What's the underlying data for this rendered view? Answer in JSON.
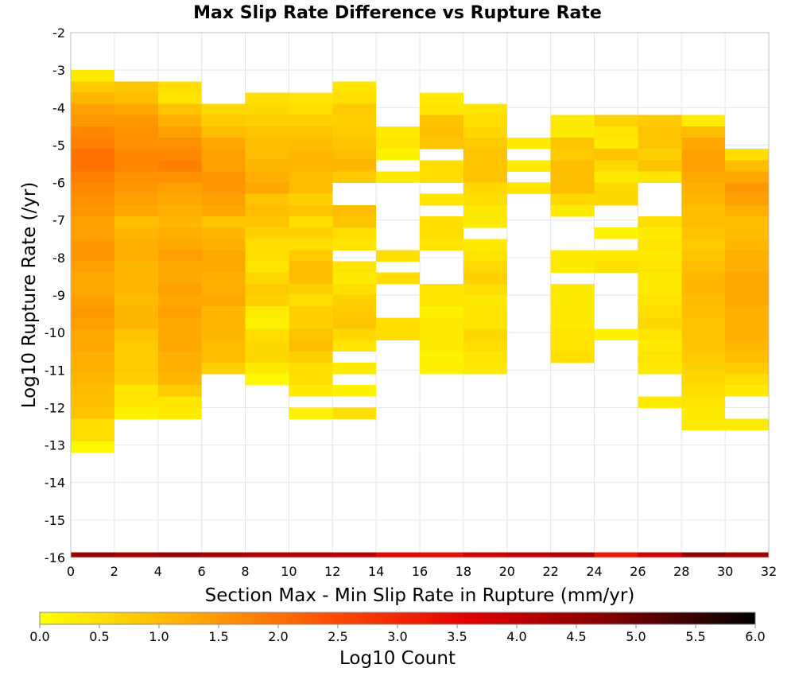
{
  "chart_data": {
    "type": "heatmap",
    "title": "Max Slip Rate Difference vs Rupture Rate",
    "xlabel": "Section Max - Min Slip Rate in Rupture (mm/yr)",
    "ylabel": "Log10 Rupture Rate (/yr)",
    "xlim": [
      0,
      32
    ],
    "ylim": [
      -16,
      -2
    ],
    "x_ticks": [
      "0",
      "2",
      "4",
      "6",
      "8",
      "10",
      "12",
      "14",
      "16",
      "18",
      "20",
      "22",
      "24",
      "26",
      "28",
      "30",
      "32"
    ],
    "y_ticks": [
      "-2",
      "-3",
      "-4",
      "-5",
      "-6",
      "-7",
      "-8",
      "-9",
      "-10",
      "-11",
      "-12",
      "-13",
      "-14",
      "-15",
      "-16"
    ],
    "x_bin_width": 2,
    "y_bin_height": 0.3,
    "colorbar": {
      "label": "Log10 Count",
      "range": [
        0,
        6
      ],
      "ticks": [
        "0.0",
        "0.5",
        "1.0",
        "1.5",
        "2.0",
        "2.5",
        "3.0",
        "3.5",
        "4.0",
        "4.5",
        "5.0",
        "5.5",
        "6.0"
      ],
      "colors": [
        "#ffff00",
        "#ffb000",
        "#ff5000",
        "#e00000",
        "#800000",
        "#000000"
      ]
    },
    "columns": [
      {
        "x0": 0,
        "ymax": -3.0,
        "values": [
          0.3,
          0.8,
          1.1,
          1.4,
          1.5,
          1.7,
          1.8,
          2.0,
          2.0,
          1.8,
          1.7,
          1.6,
          1.5,
          1.4,
          1.4,
          1.5,
          1.5,
          1.4,
          1.3,
          1.3,
          1.4,
          1.5,
          1.4,
          1.3,
          1.3,
          1.2,
          1.2,
          1.1,
          1.0,
          1.0,
          0.9,
          0.5,
          0.5,
          0.1
        ]
      },
      {
        "x0": 2,
        "ymax": -3.3,
        "values": [
          0.9,
          1.0,
          1.3,
          1.5,
          1.6,
          1.6,
          1.7,
          1.7,
          1.6,
          1.5,
          1.4,
          1.3,
          1.0,
          1.1,
          1.2,
          1.2,
          1.1,
          1.1,
          1.1,
          1.0,
          1.1,
          1.1,
          0.9,
          0.8,
          0.8,
          0.8,
          0.7,
          0.4,
          0.4,
          0.2
        ]
      },
      {
        "x0": 4,
        "ymax": -3.3,
        "values": [
          0.5,
          0.4,
          0.9,
          1.2,
          1.4,
          1.6,
          1.7,
          1.8,
          1.6,
          1.4,
          1.3,
          1.2,
          1.1,
          1.2,
          1.3,
          1.4,
          1.3,
          1.3,
          1.4,
          1.3,
          1.4,
          1.3,
          1.3,
          1.3,
          1.2,
          1.2,
          1.1,
          0.8,
          0.4,
          0.3
        ]
      },
      {
        "x0": 6,
        "ymax": -3.9,
        "values": [
          0.6,
          0.8,
          1.0,
          1.3,
          1.4,
          1.4,
          1.5,
          1.5,
          1.4,
          1.3,
          0.9,
          1.1,
          1.2,
          1.3,
          1.3,
          1.2,
          1.2,
          1.3,
          1.1,
          1.1,
          1.1,
          1.0,
          1.0,
          0.7
        ]
      },
      {
        "x0": 8,
        "ymax": -3.6,
        "values": [
          0.5,
          0.6,
          0.7,
          0.9,
          1.0,
          1.0,
          1.1,
          1.2,
          1.3,
          0.9,
          1.0,
          0.9,
          0.7,
          0.5,
          0.5,
          0.4,
          0.6,
          0.8,
          0.7,
          0.3,
          0.2,
          0.5,
          0.6,
          0.6,
          0.3,
          0.1
        ]
      },
      {
        "x0": 10,
        "ymax": -3.6,
        "values": [
          0.4,
          0.5,
          0.7,
          0.9,
          1.0,
          1.1,
          1.1,
          1.0,
          1.0,
          0.7,
          0.9,
          0.5,
          0.7,
          0.5,
          0.8,
          1.0,
          1.0,
          0.7,
          0.5,
          0.7,
          0.7,
          0.9,
          1.0,
          0.7,
          0.5,
          0.5,
          0.3,
          null,
          0.2
        ]
      },
      {
        "x0": 12,
        "ymax": -3.3,
        "values": [
          0.4,
          0.5,
          0.8,
          0.7,
          0.8,
          0.9,
          1.0,
          1.1,
          0.8,
          null,
          null,
          1.0,
          0.9,
          0.5,
          0.4,
          null,
          0.4,
          0.3,
          0.5,
          0.7,
          0.8,
          0.9,
          0.6,
          0.4,
          null,
          0.3,
          null,
          0.2,
          null,
          0.5
        ]
      },
      {
        "x0": 14,
        "ymax": -4.5,
        "values": [
          0.3,
          0.4,
          0.2,
          null,
          0.3,
          null,
          null,
          null,
          null,
          null,
          null,
          0.5,
          null,
          0.5,
          null,
          null,
          null,
          0.5,
          0.5
        ]
      },
      {
        "x0": 16,
        "ymax": -3.6,
        "values": [
          0.3,
          0.4,
          0.9,
          1.0,
          0.9,
          null,
          0.5,
          0.5,
          null,
          0.4,
          null,
          0.5,
          0.5,
          0.4,
          null,
          null,
          null,
          0.4,
          0.4,
          0.2,
          0.3,
          0.3,
          0.3,
          0.2,
          0.2
        ]
      },
      {
        "x0": 18,
        "ymax": -3.9,
        "values": [
          0.4,
          0.5,
          0.6,
          0.8,
          0.9,
          0.9,
          0.9,
          0.6,
          0.5,
          0.3,
          0.3,
          null,
          0.3,
          0.4,
          0.6,
          0.7,
          0.5,
          0.3,
          0.4,
          0.4,
          0.6,
          0.5,
          0.4,
          0.3
        ]
      },
      {
        "x0": 20,
        "ymax": -4.8,
        "values": [
          0.3,
          null,
          0.3,
          null,
          0.4
        ]
      },
      {
        "x0": 22,
        "ymax": -4.2,
        "values": [
          0.3,
          0.3,
          0.9,
          0.8,
          1.0,
          1.0,
          1.0,
          0.6,
          0.3,
          null,
          null,
          null,
          0.3,
          0.3,
          null,
          0.3,
          0.3,
          0.3,
          0.3,
          0.4,
          0.4,
          0.5
        ]
      },
      {
        "x0": 24,
        "ymax": -4.2,
        "values": [
          0.7,
          0.4,
          0.3,
          0.9,
          0.6,
          0.3,
          0.6,
          0.6,
          null,
          null,
          0.2,
          null,
          0.3,
          0.5,
          null,
          null,
          null,
          null,
          null,
          0.2
        ]
      },
      {
        "x0": 26,
        "ymax": -4.2,
        "values": [
          0.8,
          0.9,
          0.9,
          0.7,
          0.9,
          0.4,
          null,
          null,
          null,
          0.5,
          0.3,
          0.4,
          0.3,
          0.4,
          0.3,
          0.3,
          0.4,
          0.5,
          0.6,
          0.4,
          0.3,
          0.4,
          0.3,
          null,
          null,
          0.3
        ]
      },
      {
        "x0": 28,
        "ymax": -4.2,
        "values": [
          0.3,
          1.0,
          1.3,
          1.4,
          1.4,
          1.3,
          1.2,
          1.1,
          1.0,
          1.0,
          0.9,
          0.8,
          0.9,
          1.0,
          1.1,
          1.1,
          1.0,
          1.0,
          0.9,
          0.9,
          0.9,
          0.8,
          0.7,
          0.6,
          0.5,
          0.4,
          0.3,
          0.3
        ]
      },
      {
        "x0": 30,
        "ymax": -5.1,
        "values": [
          0.5,
          1.0,
          1.3,
          1.5,
          1.4,
          1.2,
          1.0,
          1.0,
          1.1,
          1.2,
          1.2,
          1.3,
          1.3,
          1.3,
          1.2,
          1.2,
          1.2,
          1.1,
          1.0,
          0.8,
          0.5,
          0.3,
          null,
          null,
          0.3
        ]
      }
    ],
    "bottom_row": {
      "y0": -16,
      "y1": -15.9,
      "values": [
        4.5,
        4.4,
        4.5,
        4.3,
        4.2,
        4.2,
        4.1,
        3.5,
        3.4,
        3.8,
        4.0,
        4.2,
        3.2,
        3.8,
        4.6,
        4.4
      ]
    }
  }
}
